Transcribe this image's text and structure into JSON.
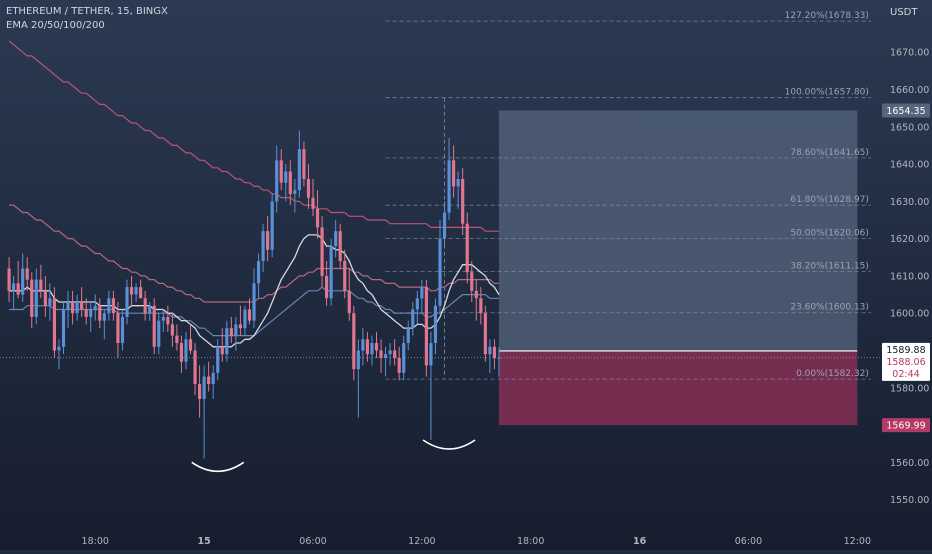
{
  "header": {
    "symbol_line": "ETHEREUM / TETHER, 15, BINGX",
    "indicator_line": "EMA 20/50/100/200"
  },
  "colors": {
    "background_top": "#2b3a52",
    "background_bottom": "#161d2e",
    "up_candle": "#5b8fd6",
    "down_candle": "#e0778f",
    "ema_fast": "#e8ecf2",
    "ema_50": "#6e8fc0",
    "ema_100": "#c86f86",
    "ema_200": "#d2557a",
    "fib_line": "#8892a6",
    "target_zone": "#56657e",
    "stop_zone": "#8c2f56",
    "price_tag_current": "#ffffff",
    "price_tag_target": "#56657e",
    "price_tag_stop": "#b23a64"
  },
  "chart_data": {
    "type": "candlestick",
    "symbol": "ETHEREUM / TETHER",
    "timeframe": "15",
    "exchange": "BINGX",
    "indicators": [
      "EMA 20",
      "EMA 50",
      "EMA 100",
      "EMA 200"
    ],
    "currency": "USDT",
    "y_axis": {
      "range": [
        1544,
        1684
      ],
      "ticks": [
        1550,
        1560,
        1570,
        1580,
        1590,
        1600,
        1610,
        1620,
        1630,
        1640,
        1650,
        1660,
        1670
      ],
      "tick_labels": [
        "1550.00",
        "1560.00",
        "1570.00",
        "1580.00",
        "1590.00",
        "1600.00",
        "1610.00",
        "1620.00",
        "1630.00",
        "1640.00",
        "1650.00",
        "1660.00",
        "1670.00"
      ]
    },
    "x_axis": {
      "ticks": [
        {
          "label": "18:00",
          "bar": 19
        },
        {
          "label": "15",
          "bar": 43
        },
        {
          "label": "06:00",
          "bar": 67
        },
        {
          "label": "12:00",
          "bar": 91
        },
        {
          "label": "18:00",
          "bar": 115
        },
        {
          "label": "16",
          "bar": 139
        },
        {
          "label": "06:00",
          "bar": 163
        },
        {
          "label": "12:00",
          "bar": 187
        }
      ],
      "bar_range": [
        -2,
        192
      ]
    },
    "candles": [
      [
        1612.0,
        1615.0,
        1603.0,
        1606.0
      ],
      [
        1606.0,
        1610.0,
        1601.0,
        1608.0
      ],
      [
        1608.0,
        1614.0,
        1604.0,
        1605.0
      ],
      [
        1605.0,
        1616.0,
        1603.0,
        1612.0
      ],
      [
        1612.0,
        1615.0,
        1606.0,
        1609.0
      ],
      [
        1609.0,
        1611.0,
        1596.0,
        1599.0
      ],
      [
        1599.0,
        1612.0,
        1597.0,
        1609.0
      ],
      [
        1609.0,
        1613.0,
        1604.0,
        1606.0
      ],
      [
        1606.0,
        1610.0,
        1599.0,
        1602.0
      ],
      [
        1602.0,
        1608.0,
        1598.0,
        1604.0
      ],
      [
        1604.0,
        1607.0,
        1588.0,
        1590.0
      ],
      [
        1590.0,
        1593.0,
        1585.0,
        1591.0
      ],
      [
        1591.0,
        1603.0,
        1589.0,
        1601.0
      ],
      [
        1601.0,
        1606.0,
        1596.0,
        1603.0
      ],
      [
        1603.0,
        1606.0,
        1597.0,
        1600.0
      ],
      [
        1600.0,
        1605.0,
        1598.0,
        1603.0
      ],
      [
        1603.0,
        1607.0,
        1599.0,
        1601.0
      ],
      [
        1601.0,
        1604.0,
        1597.0,
        1599.0
      ],
      [
        1599.0,
        1603.0,
        1595.0,
        1601.0
      ],
      [
        1601.0,
        1605.0,
        1598.0,
        1602.0
      ],
      [
        1602.0,
        1604.0,
        1596.0,
        1598.0
      ],
      [
        1598.0,
        1601.0,
        1593.0,
        1600.0
      ],
      [
        1600.0,
        1606.0,
        1598.0,
        1604.0
      ],
      [
        1604.0,
        1606.0,
        1598.0,
        1600.0
      ],
      [
        1600.0,
        1603.0,
        1588.0,
        1592.0
      ],
      [
        1592.0,
        1601.0,
        1590.0,
        1599.0
      ],
      [
        1599.0,
        1609.0,
        1597.0,
        1607.0
      ],
      [
        1607.0,
        1610.0,
        1602.0,
        1605.0
      ],
      [
        1605.0,
        1608.0,
        1603.0,
        1607.0
      ],
      [
        1607.0,
        1609.0,
        1604.0,
        1604.0
      ],
      [
        1604.0,
        1606.0,
        1598.0,
        1600.0
      ],
      [
        1600.0,
        1603.0,
        1598.0,
        1602.0
      ],
      [
        1602.0,
        1604.0,
        1589.0,
        1591.0
      ],
      [
        1591.0,
        1600.0,
        1589.0,
        1598.0
      ],
      [
        1598.0,
        1601.0,
        1595.0,
        1599.0
      ],
      [
        1599.0,
        1602.0,
        1595.0,
        1597.0
      ],
      [
        1597.0,
        1600.0,
        1591.0,
        1594.0
      ],
      [
        1594.0,
        1597.0,
        1590.0,
        1592.0
      ],
      [
        1592.0,
        1594.0,
        1584.0,
        1587.0
      ],
      [
        1587.0,
        1595.0,
        1585.0,
        1593.0
      ],
      [
        1593.0,
        1597.0,
        1589.0,
        1590.0
      ],
      [
        1590.0,
        1592.0,
        1578.0,
        1581.0
      ],
      [
        1581.0,
        1586.0,
        1572.0,
        1577.0
      ],
      [
        1577.0,
        1586.0,
        1561.0,
        1583.0
      ],
      [
        1583.0,
        1587.0,
        1579.0,
        1581.0
      ],
      [
        1581.0,
        1586.0,
        1577.0,
        1584.0
      ],
      [
        1584.0,
        1593.0,
        1582.0,
        1591.0
      ],
      [
        1591.0,
        1596.0,
        1587.0,
        1589.0
      ],
      [
        1589.0,
        1598.0,
        1587.0,
        1596.0
      ],
      [
        1596.0,
        1599.0,
        1592.0,
        1594.0
      ],
      [
        1594.0,
        1599.0,
        1590.0,
        1597.0
      ],
      [
        1597.0,
        1602.0,
        1594.0,
        1596.0
      ],
      [
        1596.0,
        1602.0,
        1594.0,
        1601.0
      ],
      [
        1601.0,
        1604.0,
        1597.0,
        1598.0
      ],
      [
        1598.0,
        1612.0,
        1596.0,
        1608.0
      ],
      [
        1608.0,
        1616.0,
        1604.0,
        1614.0
      ],
      [
        1614.0,
        1624.0,
        1611.0,
        1622.0
      ],
      [
        1622.0,
        1626.0,
        1614.0,
        1617.0
      ],
      [
        1617.0,
        1632.0,
        1615.0,
        1630.0
      ],
      [
        1630.0,
        1645.0,
        1627.0,
        1641.0
      ],
      [
        1641.0,
        1644.0,
        1633.0,
        1635.0
      ],
      [
        1635.0,
        1640.0,
        1630.0,
        1638.0
      ],
      [
        1638.0,
        1641.0,
        1629.0,
        1632.0
      ],
      [
        1632.0,
        1636.0,
        1627.0,
        1633.0
      ],
      [
        1633.0,
        1649.0,
        1631.0,
        1644.0
      ],
      [
        1644.0,
        1646.0,
        1634.0,
        1636.0
      ],
      [
        1636.0,
        1640.0,
        1628.0,
        1631.0
      ],
      [
        1631.0,
        1636.0,
        1626.0,
        1628.0
      ],
      [
        1628.0,
        1633.0,
        1620.0,
        1623.0
      ],
      [
        1623.0,
        1626.0,
        1607.0,
        1610.0
      ],
      [
        1610.0,
        1614.0,
        1602.0,
        1604.0
      ],
      [
        1604.0,
        1620.0,
        1602.0,
        1618.0
      ],
      [
        1618.0,
        1625.0,
        1615.0,
        1622.0
      ],
      [
        1622.0,
        1624.0,
        1612.0,
        1614.0
      ],
      [
        1614.0,
        1617.0,
        1604.0,
        1606.0
      ],
      [
        1606.0,
        1612.0,
        1598.0,
        1600.0
      ],
      [
        1600.0,
        1602.0,
        1582.0,
        1585.0
      ],
      [
        1585.0,
        1593.0,
        1572.0,
        1590.0
      ],
      [
        1590.0,
        1596.0,
        1586.0,
        1593.0
      ],
      [
        1593.0,
        1595.0,
        1587.0,
        1589.0
      ],
      [
        1589.0,
        1594.0,
        1586.0,
        1592.0
      ],
      [
        1592.0,
        1595.0,
        1588.0,
        1590.0
      ],
      [
        1590.0,
        1593.0,
        1584.0,
        1588.0
      ],
      [
        1588.0,
        1591.0,
        1583.0,
        1589.0
      ],
      [
        1589.0,
        1592.0,
        1586.0,
        1590.0
      ],
      [
        1590.0,
        1593.0,
        1586.0,
        1588.0
      ],
      [
        1588.0,
        1591.0,
        1582.0,
        1584.0
      ],
      [
        1584.0,
        1594.0,
        1582.0,
        1592.0
      ],
      [
        1592.0,
        1598.0,
        1590.0,
        1596.0
      ],
      [
        1596.0,
        1603.0,
        1594.0,
        1601.0
      ],
      [
        1601.0,
        1606.0,
        1597.0,
        1604.0
      ],
      [
        1604.0,
        1609.0,
        1600.0,
        1607.0
      ],
      [
        1607.0,
        1609.0,
        1583.0,
        1586.0
      ],
      [
        1586.0,
        1595.0,
        1566.0,
        1592.0
      ],
      [
        1592.0,
        1604.0,
        1589.0,
        1602.0
      ],
      [
        1602.0,
        1625.0,
        1600.0,
        1620.0
      ],
      [
        1620.0,
        1630.0,
        1618.0,
        1627.0
      ],
      [
        1627.0,
        1647.0,
        1625.0,
        1641.0
      ],
      [
        1641.0,
        1645.0,
        1631.0,
        1634.0
      ],
      [
        1634.0,
        1638.0,
        1628.0,
        1636.0
      ],
      [
        1636.0,
        1639.0,
        1621.0,
        1624.0
      ],
      [
        1624.0,
        1627.0,
        1608.0,
        1611.0
      ],
      [
        1611.0,
        1614.0,
        1603.0,
        1606.0
      ],
      [
        1606.0,
        1609.0,
        1598.0,
        1604.0
      ],
      [
        1604.0,
        1607.0,
        1597.0,
        1600.0
      ],
      [
        1600.0,
        1602.0,
        1587.0,
        1589.0
      ],
      [
        1589.0,
        1593.0,
        1584.0,
        1591.0
      ],
      [
        1591.0,
        1593.0,
        1585.0,
        1588.0
      ],
      [
        1588.0,
        1591.0,
        1583.0,
        1588.1
      ]
    ],
    "ema_20": [
      1606,
      1606,
      1606,
      1606,
      1607,
      1606,
      1606,
      1606,
      1606,
      1606,
      1604,
      1603,
      1603,
      1603,
      1603,
      1603,
      1603,
      1603,
      1603,
      1603,
      1602,
      1602,
      1602,
      1602,
      1601,
      1601,
      1601,
      1602,
      1602,
      1602,
      1602,
      1602,
      1601,
      1601,
      1601,
      1600,
      1600,
      1599,
      1598,
      1598,
      1597,
      1596,
      1594,
      1593,
      1592,
      1591,
      1591,
      1591,
      1591,
      1591,
      1592,
      1592,
      1593,
      1593,
      1594,
      1596,
      1598,
      1600,
      1603,
      1606,
      1609,
      1611,
      1613,
      1615,
      1618,
      1620,
      1621,
      1621,
      1621,
      1620,
      1618,
      1618,
      1617,
      1617,
      1616,
      1614,
      1611,
      1609,
      1608,
      1606,
      1605,
      1603,
      1601,
      1600,
      1599,
      1598,
      1597,
      1596,
      1596,
      1596,
      1597,
      1597,
      1596,
      1596,
      1597,
      1599,
      1602,
      1606,
      1609,
      1611,
      1613,
      1613,
      1613,
      1612,
      1611,
      1610,
      1608,
      1607,
      1605
    ],
    "ema_50": [
      1601,
      1601,
      1601,
      1601,
      1602,
      1602,
      1602,
      1602,
      1602,
      1602,
      1601,
      1601,
      1601,
      1601,
      1601,
      1601,
      1601,
      1601,
      1601,
      1601,
      1601,
      1601,
      1601,
      1601,
      1600,
      1600,
      1600,
      1600,
      1600,
      1600,
      1600,
      1600,
      1600,
      1600,
      1600,
      1600,
      1599,
      1599,
      1599,
      1598,
      1598,
      1597,
      1596,
      1596,
      1595,
      1594,
      1594,
      1594,
      1594,
      1594,
      1594,
      1594,
      1594,
      1594,
      1594,
      1595,
      1596,
      1597,
      1598,
      1599,
      1600,
      1601,
      1602,
      1603,
      1604,
      1605,
      1606,
      1606,
      1606,
      1607,
      1606,
      1606,
      1606,
      1606,
      1606,
      1606,
      1605,
      1604,
      1604,
      1603,
      1603,
      1602,
      1602,
      1601,
      1601,
      1600,
      1600,
      1600,
      1600,
      1600,
      1600,
      1600,
      1599,
      1599,
      1600,
      1600,
      1601,
      1602,
      1603,
      1604,
      1605,
      1605,
      1605,
      1605,
      1605,
      1605,
      1604,
      1604,
      1604
    ],
    "ema_100": [
      1629,
      1629,
      1628,
      1627,
      1627,
      1626,
      1625,
      1625,
      1624,
      1623,
      1622,
      1622,
      1621,
      1620,
      1620,
      1619,
      1618,
      1618,
      1617,
      1616,
      1616,
      1615,
      1614,
      1614,
      1613,
      1612,
      1612,
      1611,
      1611,
      1610,
      1610,
      1609,
      1609,
      1608,
      1608,
      1607,
      1607,
      1606,
      1606,
      1605,
      1605,
      1604,
      1604,
      1603,
      1603,
      1603,
      1603,
      1603,
      1603,
      1603,
      1603,
      1603,
      1603,
      1603,
      1603,
      1604,
      1604,
      1605,
      1605,
      1606,
      1607,
      1607,
      1608,
      1609,
      1610,
      1610,
      1611,
      1611,
      1612,
      1612,
      1612,
      1612,
      1612,
      1612,
      1612,
      1612,
      1611,
      1611,
      1610,
      1610,
      1609,
      1609,
      1609,
      1608,
      1608,
      1608,
      1607,
      1607,
      1607,
      1607,
      1607,
      1607,
      1607,
      1606,
      1606,
      1607,
      1607,
      1608,
      1608,
      1609,
      1609,
      1609,
      1609,
      1609,
      1609,
      1609,
      1609,
      1608,
      1608
    ],
    "ema_200": [
      1673,
      1672,
      1671,
      1670,
      1669,
      1669,
      1668,
      1667,
      1666,
      1665,
      1664,
      1663,
      1662,
      1662,
      1661,
      1660,
      1659,
      1659,
      1658,
      1657,
      1656,
      1656,
      1655,
      1654,
      1653,
      1653,
      1652,
      1651,
      1651,
      1650,
      1649,
      1649,
      1648,
      1647,
      1647,
      1646,
      1645,
      1645,
      1644,
      1643,
      1643,
      1642,
      1641,
      1641,
      1640,
      1639,
      1639,
      1638,
      1638,
      1637,
      1636,
      1636,
      1635,
      1635,
      1634,
      1634,
      1633,
      1633,
      1632,
      1632,
      1631,
      1631,
      1631,
      1630,
      1630,
      1629,
      1629,
      1629,
      1628,
      1628,
      1628,
      1627,
      1627,
      1627,
      1627,
      1626,
      1626,
      1626,
      1626,
      1625,
      1625,
      1625,
      1625,
      1625,
      1624,
      1624,
      1624,
      1624,
      1624,
      1624,
      1624,
      1624,
      1624,
      1623,
      1623,
      1623,
      1623,
      1623,
      1623,
      1623,
      1623,
      1623,
      1623,
      1623,
      1623,
      1622,
      1622,
      1622,
      1622
    ],
    "fibonacci": {
      "x_start_bar": 83,
      "x_end_bar": 190,
      "levels": [
        {
          "label": "127.20%(1678.33)",
          "price": 1678.33
        },
        {
          "label": "100.00%(1657.80)",
          "price": 1657.8
        },
        {
          "label": "78.60%(1641.65)",
          "price": 1641.65
        },
        {
          "label": "61.80%(1628.97)",
          "price": 1628.97
        },
        {
          "label": "50.00%(1620.06)",
          "price": 1620.06
        },
        {
          "label": "38.20%(1611.15)",
          "price": 1611.15
        },
        {
          "label": "23.60%(1600.13)",
          "price": 1600.13
        },
        {
          "label": "0.00%(1582.32)",
          "price": 1582.32
        }
      ],
      "anchor_bar": 96
    },
    "position": {
      "x_start_bar": 108,
      "x_end_bar": 187,
      "target_price": 1654.35,
      "entry_price": 1589.88,
      "stop_price": 1569.99
    },
    "patterns": [
      {
        "type": "arc",
        "center_bar": 46,
        "price": 1560
      },
      {
        "type": "arc",
        "center_bar": 97,
        "price": 1566
      }
    ],
    "current_price": 1588.06,
    "countdown": "02:44",
    "price_labels": {
      "target": "1654.35",
      "entry": "1589.88",
      "current": "1588.06",
      "countdown": "02:44",
      "stop": "1569.99"
    }
  }
}
